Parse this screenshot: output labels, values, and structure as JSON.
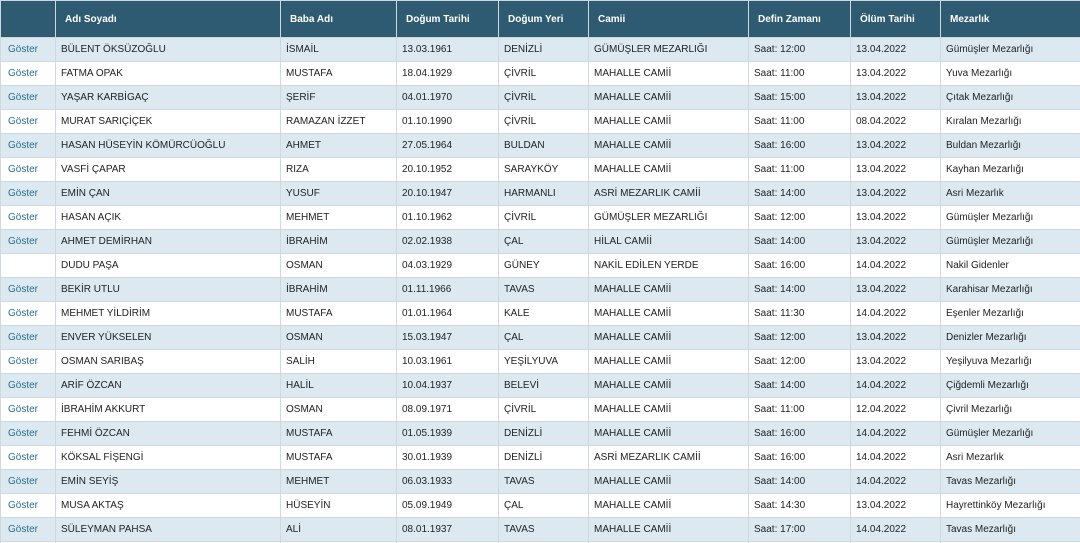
{
  "table": {
    "header": [
      null,
      "Adı Soyadı",
      "Baba Adı",
      "Doğum Tarihi",
      "Doğum Yeri",
      "Camii",
      "Defin Zamanı",
      "Ölüm Tarihi",
      "Mezarlık"
    ],
    "rows": [
      [
        "Göster",
        "BÜLENT ÖKSÜZOĞLU",
        "İSMAİL",
        "13.03.1961",
        "DENİZLİ",
        "GÜMÜŞLER MEZARLIĞI",
        "Saat: 12:00",
        "13.04.2022",
        "Gümüşler Mezarlığı"
      ],
      [
        "Göster",
        "FATMA OPAK",
        "MUSTAFA",
        "18.04.1929",
        "ÇİVRİL",
        "MAHALLE CAMİİ",
        "Saat: 11:00",
        "13.04.2022",
        "Yuva Mezarlığı"
      ],
      [
        "Göster",
        "YAŞAR KARBİGAÇ",
        "ŞERİF",
        "04.01.1970",
        "ÇİVRİL",
        "MAHALLE CAMİİ",
        "Saat: 15:00",
        "13.04.2022",
        "Çıtak Mezarlığı"
      ],
      [
        "Göster",
        "MURAT SARIÇİÇEK",
        "RAMAZAN İZZET",
        "01.10.1990",
        "ÇİVRİL",
        "MAHALLE CAMİİ",
        "Saat: 11:00",
        "08.04.2022",
        "Kıralan Mezarlığı"
      ],
      [
        "Göster",
        "HASAN HÜSEYİN KÖMÜRCÜOĞLU",
        "AHMET",
        "27.05.1964",
        "BULDAN",
        "MAHALLE CAMİİ",
        "Saat: 16:00",
        "13.04.2022",
        "Buldan Mezarlığı"
      ],
      [
        "Göster",
        "VASFİ ÇAPAR",
        "RIZA",
        "20.10.1952",
        "SARAYKÖY",
        "MAHALLE CAMİİ",
        "Saat: 11:00",
        "13.04.2022",
        "Kayhan Mezarlığı"
      ],
      [
        "Göster",
        "EMİN ÇAN",
        "YUSUF",
        "20.10.1947",
        "HARMANLI",
        "ASRİ MEZARLIK CAMİİ",
        "Saat: 14:00",
        "13.04.2022",
        "Asri Mezarlık"
      ],
      [
        "Göster",
        "HASAN AÇIK",
        "MEHMET",
        "01.10.1962",
        "ÇİVRİL",
        "GÜMÜŞLER MEZARLIĞI",
        "Saat: 12:00",
        "13.04.2022",
        "Gümüşler Mezarlığı"
      ],
      [
        "Göster",
        "AHMET DEMİRHAN",
        "İBRAHİM",
        "02.02.1938",
        "ÇAL",
        "HİLAL CAMİİ",
        "Saat: 14:00",
        "13.04.2022",
        "Gümüşler Mezarlığı"
      ],
      [
        null,
        "DUDU PAŞA",
        "OSMAN",
        "04.03.1929",
        "GÜNEY",
        "NAKİL EDİLEN YERDE",
        "Saat: 16:00",
        "14.04.2022",
        "Nakil Gidenler"
      ],
      [
        "Göster",
        "BEKİR UTLU",
        "İBRAHİM",
        "01.11.1966",
        "TAVAS",
        "MAHALLE CAMİİ",
        "Saat: 14:00",
        "13.04.2022",
        "Karahisar Mezarlığı"
      ],
      [
        "Göster",
        "MEHMET YİLDİRİM",
        "MUSTAFA",
        "01.01.1964",
        "KALE",
        "MAHALLE CAMİİ",
        "Saat: 11:30",
        "14.04.2022",
        "Eşenler Mezarlığı"
      ],
      [
        "Göster",
        "ENVER YÜKSELEN",
        "OSMAN",
        "15.03.1947",
        "ÇAL",
        "MAHALLE CAMİİ",
        "Saat: 12:00",
        "13.04.2022",
        "Denizler Mezarlığı"
      ],
      [
        "Göster",
        "OSMAN SARIBAŞ",
        "SALİH",
        "10.03.1961",
        "YEŞİLYUVA",
        "MAHALLE CAMİİ",
        "Saat: 12:00",
        "13.04.2022",
        "Yeşilyuva Mezarlığı"
      ],
      [
        "Göster",
        "ARİF ÖZCAN",
        "HALİL",
        "10.04.1937",
        "BELEVİ",
        "MAHALLE CAMİİ",
        "Saat: 14:00",
        "14.04.2022",
        "Çiğdemli Mezarlığı"
      ],
      [
        "Göster",
        "İBRAHİM AKKURT",
        "OSMAN",
        "08.09.1971",
        "ÇİVRİL",
        "MAHALLE CAMİİ",
        "Saat: 11:00",
        "12.04.2022",
        "Çivril Mezarlığı"
      ],
      [
        "Göster",
        "FEHMİ ÖZCAN",
        "MUSTAFA",
        "01.05.1939",
        "DENİZLİ",
        "MAHALLE CAMİİ",
        "Saat: 16:00",
        "14.04.2022",
        "Gümüşler Mezarlığı"
      ],
      [
        "Göster",
        "KÖKSAL FİŞENGİ",
        "MUSTAFA",
        "30.01.1939",
        "DENİZLİ",
        "ASRİ MEZARLIK CAMİİ",
        "Saat: 16:00",
        "14.04.2022",
        "Asri Mezarlık"
      ],
      [
        "Göster",
        "EMİN SEYİŞ",
        "MEHMET",
        "06.03.1933",
        "TAVAS",
        "MAHALLE CAMİİ",
        "Saat: 14:00",
        "14.04.2022",
        "Tavas Mezarlığı"
      ],
      [
        "Göster",
        "MUSA AKTAŞ",
        "HÜSEYİN",
        "05.09.1949",
        "ÇAL",
        "MAHALLE CAMİİ",
        "Saat: 14:30",
        "13.04.2022",
        "Hayrettinköy Mezarlığı"
      ],
      [
        "Göster",
        "SÜLEYMAN PAHSA",
        "ALİ",
        "08.01.1937",
        "TAVAS",
        "MAHALLE CAMİİ",
        "Saat: 17:00",
        "14.04.2022",
        "Tavas Mezarlığı"
      ]
    ]
  }
}
